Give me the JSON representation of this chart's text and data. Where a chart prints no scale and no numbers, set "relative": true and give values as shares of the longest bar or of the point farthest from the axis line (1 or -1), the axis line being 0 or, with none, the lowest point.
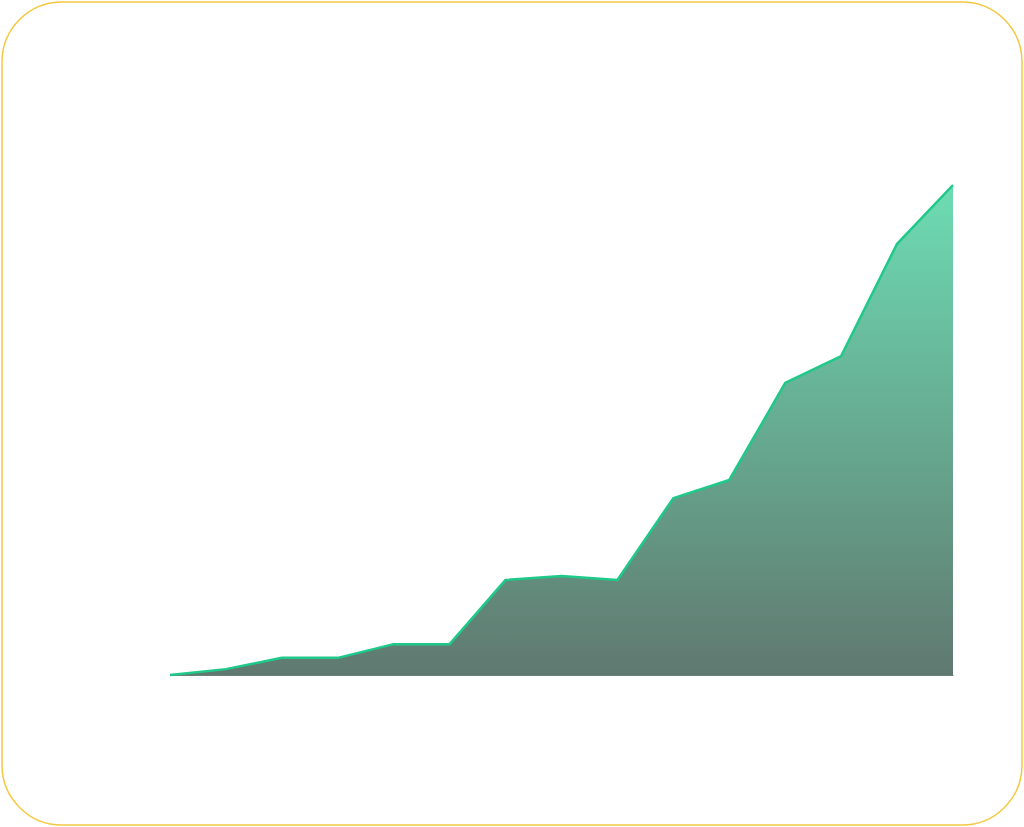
{
  "chart_data": {
    "type": "area",
    "relative": true,
    "categories": [
      null,
      null,
      null,
      null,
      null,
      null,
      null,
      null,
      null,
      null,
      null,
      null,
      null,
      null,
      null
    ],
    "series": [
      {
        "color": "#1fc98a",
        "values": [
          0,
          0.012,
          0.035,
          0.035,
          0.063,
          0.063,
          0.194,
          0.202,
          0.194,
          0.361,
          0.398,
          0.596,
          0.651,
          0.88,
          1
        ]
      }
    ]
  }
}
